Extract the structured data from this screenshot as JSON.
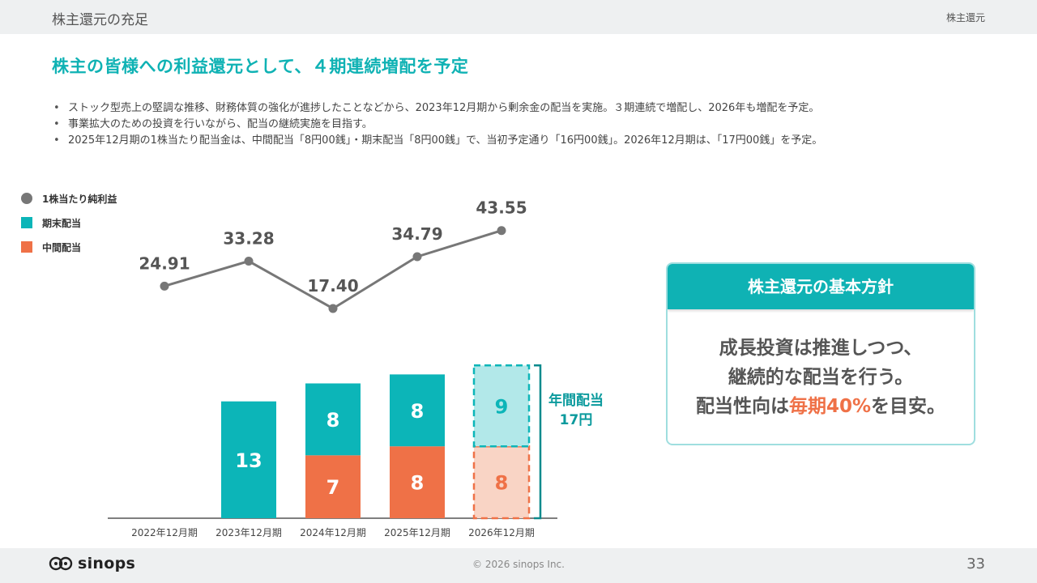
{
  "header": {
    "section_title": "株主還元の充足",
    "section_tag": "株主還元"
  },
  "headline": "株主の皆様への利益還元として、４期連続増配を予定",
  "bullets": [
    "ストック型売上の堅調な推移、財務体質の強化が進捗したことなどから、2023年12月期から剰余金の配当を実施。３期連続で増配し、2026年も増配を予定。",
    "事業拡大のための投資を行いながら、配当の継続実施を目指す。",
    "2025年12月期の1株当たり配当金は、中間配当「8円00銭」・期末配当「8円00銭」で、当初予定通り「16円00銭」。2026年12月期は、「17円00銭」を予定。"
  ],
  "legend": {
    "eps": "1株当たり純利益",
    "final": "期末配当",
    "interim": "中間配当"
  },
  "chart_data": {
    "type": "bar",
    "stacked": true,
    "categories": [
      "2022年12月期",
      "2023年12月期",
      "2024年12月期",
      "2025年12月期",
      "2026年12月期"
    ],
    "series": [
      {
        "name": "中間配当",
        "values": [
          0,
          0,
          7,
          8,
          8
        ],
        "color": "#ef7147",
        "forecast_color": "#f9d4c5"
      },
      {
        "name": "期末配当",
        "values": [
          0,
          13,
          8,
          8,
          9
        ],
        "color": "#0cb5b8",
        "forecast_color": "#b2e8e9"
      }
    ],
    "line_series": {
      "name": "1株当たり純利益",
      "values": [
        24.91,
        33.28,
        17.4,
        34.79,
        43.55
      ],
      "labels": [
        "24.91",
        "33.28",
        "17.40",
        "34.79",
        "43.55"
      ],
      "color": "#777777"
    },
    "forecast_index": 4,
    "annual_label_line1": "年間配当",
    "annual_label_line2": "17円"
  },
  "policy": {
    "title": "株主還元の基本方針",
    "line1": "成長投資は推進しつつ、",
    "line2": "継続的な配当を行う。",
    "line3_pre": "配当性向は",
    "line3_hl": "毎期40%",
    "line3_post": "を目安。",
    "accent": "#ef7147"
  },
  "footer": {
    "logo_text": "sinops",
    "copyright": "© 2026 sinops Inc.",
    "page": "33"
  }
}
